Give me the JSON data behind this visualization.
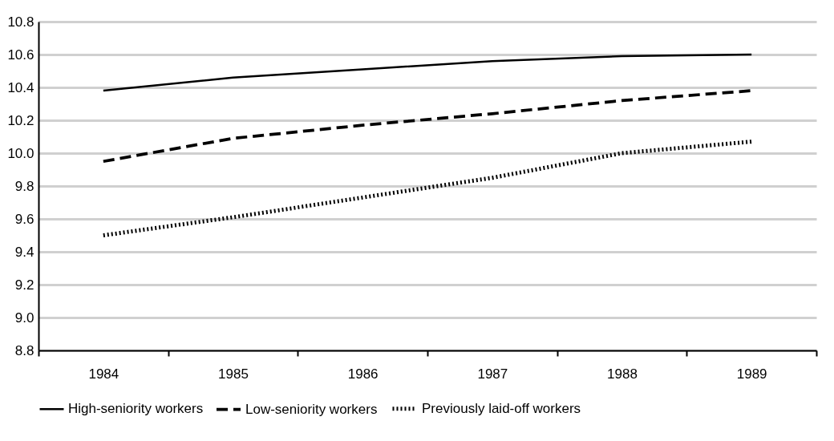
{
  "chart_data": {
    "type": "line",
    "categories": [
      "1984",
      "1985",
      "1986",
      "1987",
      "1988",
      "1989"
    ],
    "series": [
      {
        "name": "High-seniority workers",
        "color": "#000000",
        "line_style": "solid",
        "values": [
          10.38,
          10.46,
          10.51,
          10.56,
          10.59,
          10.6
        ]
      },
      {
        "name": "Low-seniority workers",
        "color": "#000000",
        "line_style": "dashed",
        "values": [
          9.95,
          10.09,
          10.17,
          10.24,
          10.32,
          10.38
        ]
      },
      {
        "name": "Previously laid-off workers",
        "color": "#000000",
        "line_style": "dotted",
        "values": [
          9.5,
          9.61,
          9.73,
          9.85,
          10.0,
          10.07
        ]
      }
    ],
    "ylim": [
      8.8,
      10.8
    ],
    "yticks": [
      {
        "value": 8.8,
        "label": "8.8"
      },
      {
        "value": 9.0,
        "label": "9.0"
      },
      {
        "value": 9.2,
        "label": "9.2"
      },
      {
        "value": 9.4,
        "label": "9.4"
      },
      {
        "value": 9.6,
        "label": "9.6"
      },
      {
        "value": 9.8,
        "label": "9.8"
      },
      {
        "value": 10.0,
        "label": "10.0"
      },
      {
        "value": 10.2,
        "label": "10.2"
      },
      {
        "value": 10.4,
        "label": "10.4"
      },
      {
        "value": 10.6,
        "label": "10.6"
      },
      {
        "value": 10.8,
        "label": "10.8"
      }
    ],
    "grid": "y",
    "legend": "bottom",
    "marker": "none"
  }
}
